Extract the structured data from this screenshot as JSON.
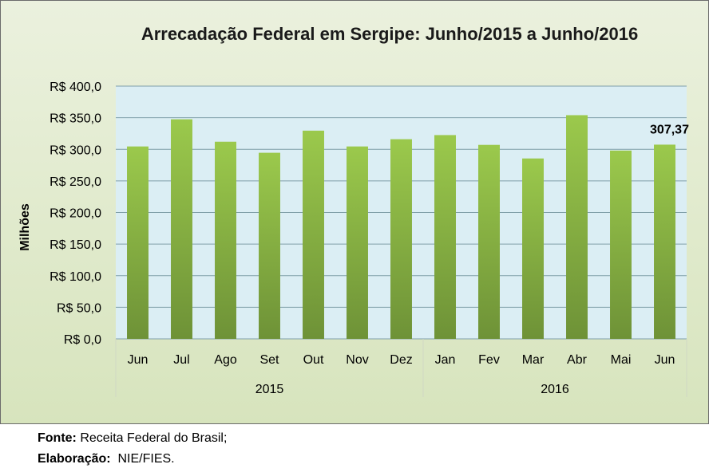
{
  "chart_data": {
    "type": "bar",
    "title": "Arrecadação Federal em Sergipe: Junho/2015 a Junho/2016",
    "ylabel": "Milhões",
    "xlabel": "",
    "ylim": [
      0,
      400
    ],
    "ytick_values": [
      0,
      50,
      100,
      150,
      200,
      250,
      300,
      350,
      400
    ],
    "ytick_labels": [
      "R$ 0,0",
      "R$ 50,0",
      "R$ 100,0",
      "R$ 150,0",
      "R$ 200,0",
      "R$ 250,0",
      "R$ 300,0",
      "R$ 350,0",
      "R$ 400,0"
    ],
    "categories": [
      "Jun",
      "Jul",
      "Ago",
      "Set",
      "Out",
      "Nov",
      "Dez",
      "Jan",
      "Fev",
      "Mar",
      "Abr",
      "Mai",
      "Jun"
    ],
    "groups": [
      {
        "label": "2015",
        "count": 7
      },
      {
        "label": "2016",
        "count": 6
      }
    ],
    "values": [
      304.5,
      347.5,
      312,
      294.5,
      329.5,
      304.5,
      316,
      322.5,
      307,
      285.5,
      354,
      298,
      307.37
    ],
    "data_labels": [
      {
        "index": 12,
        "text": "307,37"
      }
    ],
    "grid": true,
    "colors": {
      "bar_top": "#9bc94c",
      "bar_bottom": "#6e9237",
      "plot_bg_top": "#dbeef4",
      "plot_bg_bottom": "#dbeef4",
      "grid": "#7f9fa8",
      "chart_bg": "#e4ecd3"
    }
  },
  "footer": {
    "source_label": "Fonte:",
    "source_text": " Receita Federal do Brasil;",
    "credit_label": "Elaboração:",
    "credit_text": "  NIE/FIES."
  }
}
